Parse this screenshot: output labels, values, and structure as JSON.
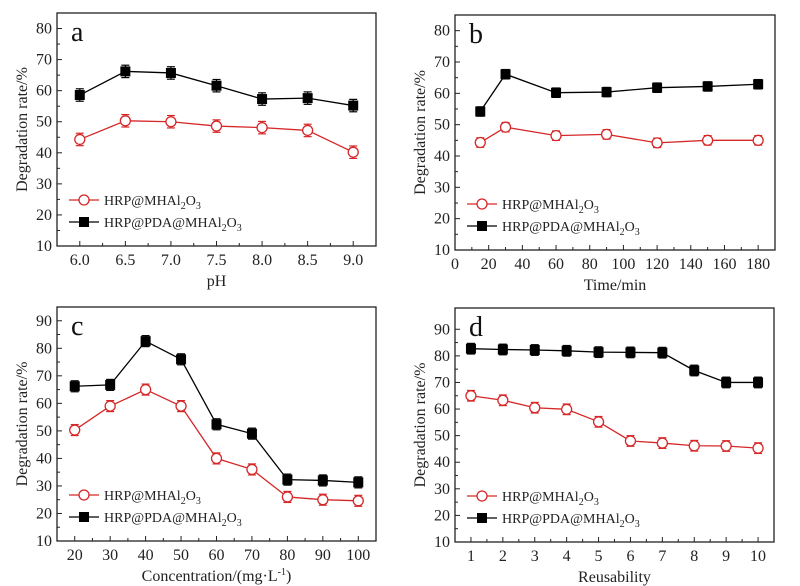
{
  "figure": {
    "series_names": [
      "HRP@MHAl2O3",
      "HRP@PDA@MHAl2O3"
    ],
    "legend": [
      {
        "prefix": "HRP@MHAl",
        "sub1": "2",
        "mid": "O",
        "sub2": "3"
      },
      {
        "prefix": "HRP@PDA@MHAl",
        "sub1": "2",
        "mid": "O",
        "sub2": "3"
      }
    ],
    "colors": {
      "HRP@MHAl2O3": "#d62728",
      "HRP@PDA@MHAl2O3": "#000000"
    }
  },
  "chart_data": [
    {
      "panel": "a",
      "type": "line",
      "xlabel": "pH",
      "ylabel": "Degradation rate/%",
      "xlim": [
        5.75,
        9.25
      ],
      "ylim": [
        10,
        85
      ],
      "xticks": [
        6.0,
        6.5,
        7.0,
        7.5,
        8.0,
        8.5,
        9.0
      ],
      "xtick_labels": [
        "6.0",
        "6.5",
        "7.0",
        "7.5",
        "8.0",
        "8.5",
        "9.0"
      ],
      "yticks": [
        10,
        20,
        30,
        40,
        50,
        60,
        70,
        80
      ],
      "ytick_labels": [
        "10",
        "20",
        "30",
        "40",
        "50",
        "60",
        "70",
        "80"
      ],
      "x": [
        6.0,
        6.5,
        7.0,
        7.5,
        8.0,
        8.5,
        9.0
      ],
      "series": [
        {
          "name": "HRP@MHAl2O3",
          "marker": "open-circle",
          "values": [
            44.3,
            50.3,
            50.0,
            48.6,
            48.1,
            47.2,
            40.2
          ],
          "error": 2
        },
        {
          "name": "HRP@PDA@MHAl2O3",
          "marker": "filled-square",
          "values": [
            58.6,
            66.2,
            65.7,
            61.6,
            57.3,
            57.6,
            55.2
          ],
          "error": 2
        }
      ],
      "legend_position": "bottom-left"
    },
    {
      "panel": "b",
      "type": "line",
      "xlabel": "Time/min",
      "ylabel": "Degradation rate/%",
      "xlim": [
        0,
        190
      ],
      "ylim": [
        10,
        85
      ],
      "xticks": [
        0,
        20,
        40,
        60,
        80,
        100,
        120,
        140,
        160,
        180
      ],
      "xtick_labels": [
        "0",
        "20",
        "40",
        "60",
        "80",
        "100",
        "120",
        "140",
        "160",
        "180"
      ],
      "yticks": [
        10,
        20,
        30,
        40,
        50,
        60,
        70,
        80
      ],
      "ytick_labels": [
        "10",
        "20",
        "30",
        "40",
        "50",
        "60",
        "70",
        "80"
      ],
      "x": [
        15,
        30,
        60,
        90,
        120,
        150,
        180
      ],
      "series": [
        {
          "name": "HRP@MHAl2O3",
          "marker": "open-circle",
          "values": [
            44.3,
            49.2,
            46.5,
            46.9,
            44.2,
            45.0,
            45.0
          ],
          "error": 1.5
        },
        {
          "name": "HRP@PDA@MHAl2O3",
          "marker": "filled-square",
          "values": [
            54.2,
            66.1,
            60.2,
            60.4,
            61.8,
            62.2,
            62.9
          ],
          "error": 1.5
        }
      ],
      "legend_position": "bottom-left"
    },
    {
      "panel": "c",
      "type": "line",
      "xlabel": "Concentration/(mg·L",
      "xlabel_sup": "-1",
      "xlabel_end": ")",
      "ylabel": "Degradation rate/%",
      "xlim": [
        15,
        105
      ],
      "ylim": [
        10,
        95
      ],
      "xticks": [
        20,
        30,
        40,
        50,
        60,
        70,
        80,
        90,
        100
      ],
      "xtick_labels": [
        "20",
        "30",
        "40",
        "50",
        "60",
        "70",
        "80",
        "90",
        "100"
      ],
      "yticks": [
        10,
        20,
        30,
        40,
        50,
        60,
        70,
        80,
        90
      ],
      "ytick_labels": [
        "10",
        "20",
        "30",
        "40",
        "50",
        "60",
        "70",
        "80",
        "90"
      ],
      "x": [
        20,
        30,
        40,
        50,
        60,
        70,
        80,
        90,
        100
      ],
      "series": [
        {
          "name": "HRP@MHAl2O3",
          "marker": "open-circle",
          "values": [
            50.3,
            59.0,
            65.0,
            59.0,
            40.0,
            36.0,
            26.0,
            25.0,
            24.6
          ],
          "error": 2
        },
        {
          "name": "HRP@PDA@MHAl2O3",
          "marker": "filled-square",
          "values": [
            66.2,
            66.7,
            82.6,
            76.0,
            52.4,
            49.0,
            32.3,
            32.0,
            31.3
          ],
          "error": 2
        }
      ],
      "legend_position": "bottom-left"
    },
    {
      "panel": "d",
      "type": "line",
      "xlabel": "Reusability",
      "ylabel": "Degradation rate/%",
      "xlim": [
        0.5,
        10.5
      ],
      "ylim": [
        10,
        98
      ],
      "xticks": [
        1,
        2,
        3,
        4,
        5,
        6,
        7,
        8,
        9,
        10
      ],
      "xtick_labels": [
        "1",
        "2",
        "3",
        "4",
        "5",
        "6",
        "7",
        "8",
        "9",
        "10"
      ],
      "yticks": [
        10,
        20,
        30,
        40,
        50,
        60,
        70,
        80,
        90
      ],
      "ytick_labels": [
        "10",
        "20",
        "30",
        "40",
        "50",
        "60",
        "70",
        "80",
        "90"
      ],
      "x": [
        1,
        2,
        3,
        4,
        5,
        6,
        7,
        8,
        9,
        10
      ],
      "series": [
        {
          "name": "HRP@MHAl2O3",
          "marker": "open-circle",
          "values": [
            65.0,
            63.3,
            60.5,
            59.9,
            55.2,
            48.0,
            47.2,
            46.2,
            46.1,
            45.3
          ],
          "error": 2
        },
        {
          "name": "HRP@PDA@MHAl2O3",
          "marker": "filled-square",
          "values": [
            82.7,
            82.4,
            82.2,
            81.9,
            81.4,
            81.3,
            81.2,
            74.5,
            70.0,
            70.0
          ],
          "error": 2
        }
      ],
      "legend_position": "bottom-left"
    }
  ]
}
